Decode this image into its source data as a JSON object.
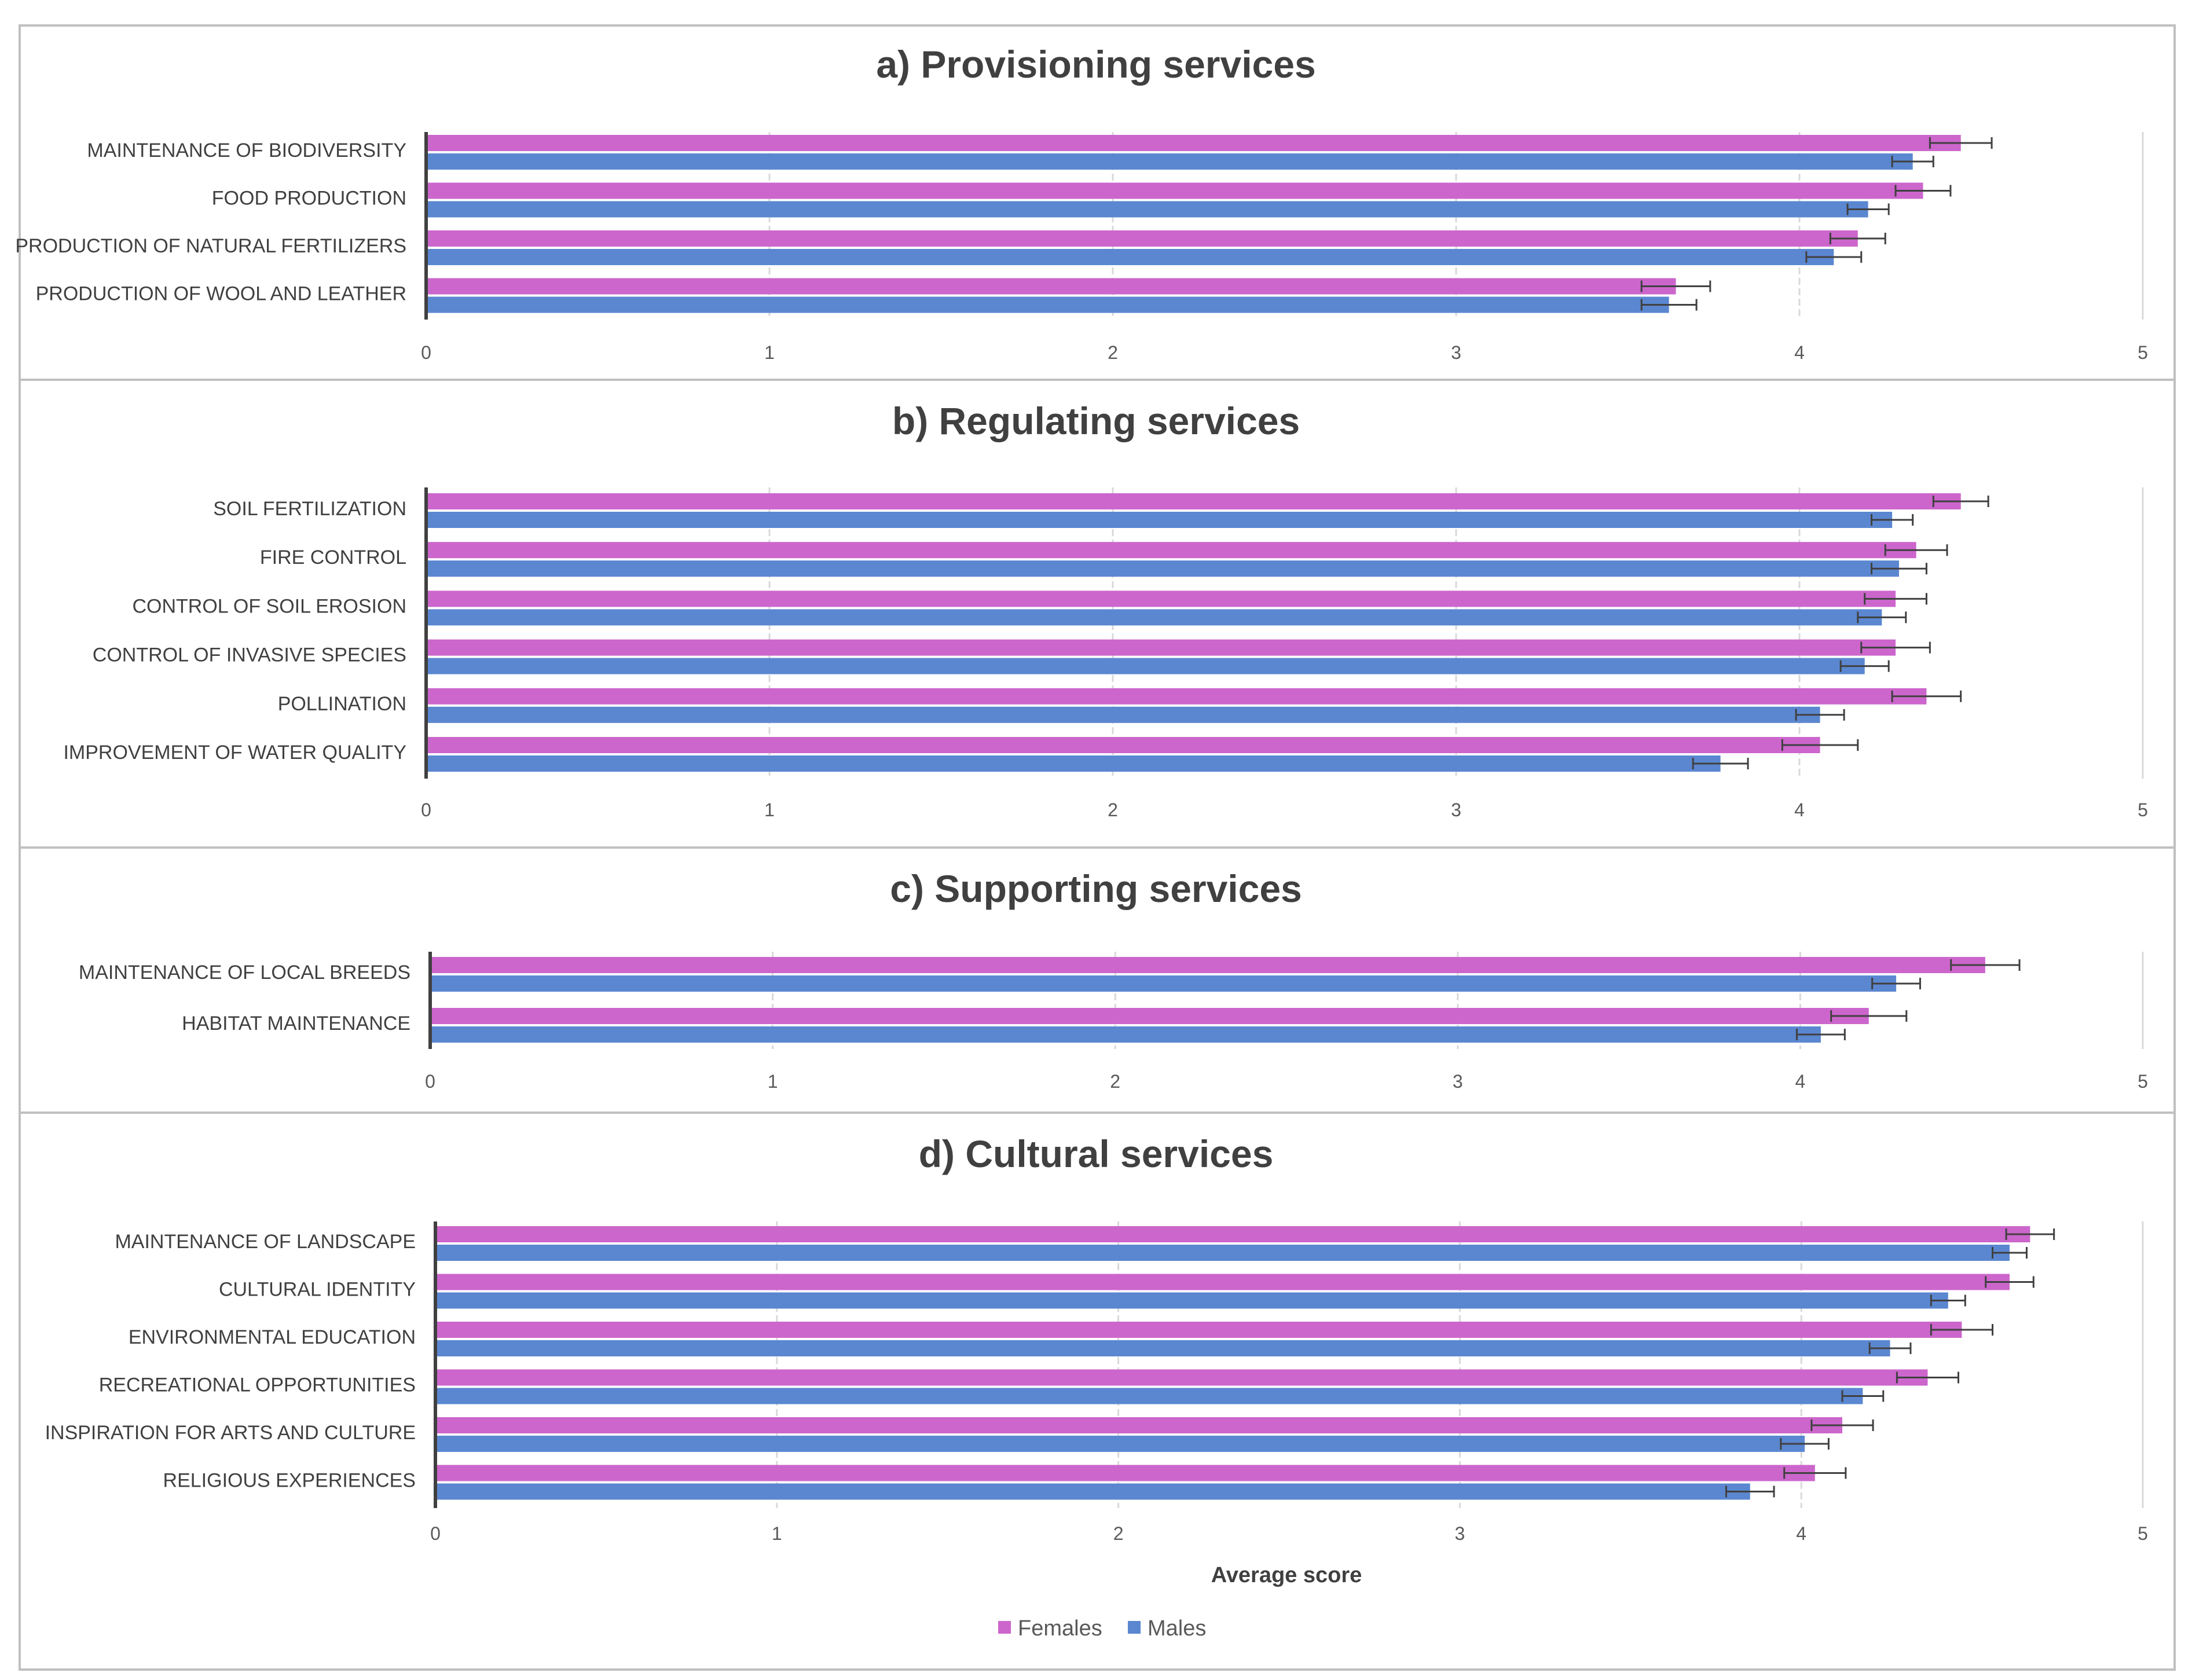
{
  "colors": {
    "females": "#CC66CC",
    "males": "#5B87D1",
    "border": "#C0C0C0",
    "grid": "#D9D9D9",
    "axis": "#404040",
    "errorbar": "#404040"
  },
  "legend": {
    "females": "Females",
    "males": "Males",
    "placement": "bottom-center"
  },
  "xlabel": "Average score",
  "chart_data": [
    {
      "type": "bar",
      "orientation": "horizontal",
      "title": "a) Provisioning services",
      "categories": [
        "MAINTENANCE OF BIODIVERSITY",
        "FOOD PRODUCTION",
        "PRODUCTION OF NATURAL FERTILIZERS",
        "PRODUCTION OF WOOL AND LEATHER"
      ],
      "series": [
        {
          "name": "Females",
          "values": [
            4.47,
            4.36,
            4.17,
            3.64
          ],
          "errors": [
            0.09,
            0.08,
            0.08,
            0.1
          ]
        },
        {
          "name": "Males",
          "values": [
            4.33,
            4.2,
            4.1,
            3.62
          ],
          "errors": [
            0.06,
            0.06,
            0.08,
            0.08
          ]
        }
      ],
      "xlim": [
        0,
        5
      ],
      "ticks": [
        "0",
        "1",
        "2",
        "3",
        "4",
        "5"
      ],
      "grid": true
    },
    {
      "type": "bar",
      "orientation": "horizontal",
      "title": "b) Regulating services",
      "categories": [
        "SOIL FERTILIZATION",
        "FIRE CONTROL",
        "CONTROL OF SOIL EROSION",
        "CONTROL OF INVASIVE SPECIES",
        "POLLINATION",
        "IMPROVEMENT OF WATER QUALITY"
      ],
      "series": [
        {
          "name": "Females",
          "values": [
            4.47,
            4.34,
            4.28,
            4.28,
            4.37,
            4.06
          ],
          "errors": [
            0.08,
            0.09,
            0.09,
            0.1,
            0.1,
            0.11
          ]
        },
        {
          "name": "Males",
          "values": [
            4.27,
            4.29,
            4.24,
            4.19,
            4.06,
            3.77
          ],
          "errors": [
            0.06,
            0.08,
            0.07,
            0.07,
            0.07,
            0.08
          ]
        }
      ],
      "xlim": [
        0,
        5
      ],
      "ticks": [
        "0",
        "1",
        "2",
        "3",
        "4",
        "5"
      ],
      "grid": true
    },
    {
      "type": "bar",
      "orientation": "horizontal",
      "title": "c) Supporting services",
      "categories": [
        "MAINTENANCE OF LOCAL BREEDS",
        "HABITAT MAINTENANCE"
      ],
      "series": [
        {
          "name": "Females",
          "values": [
            4.54,
            4.2
          ],
          "errors": [
            0.1,
            0.11
          ]
        },
        {
          "name": "Males",
          "values": [
            4.28,
            4.06
          ],
          "errors": [
            0.07,
            0.07
          ]
        }
      ],
      "xlim": [
        0,
        5
      ],
      "ticks": [
        "0",
        "1",
        "2",
        "3",
        "4",
        "5"
      ],
      "grid": true
    },
    {
      "type": "bar",
      "orientation": "horizontal",
      "title": "d) Cultural services",
      "categories": [
        "MAINTENANCE OF LANDSCAPE",
        "CULTURAL IDENTITY",
        "ENVIRONMENTAL EDUCATION",
        "RECREATIONAL OPPORTUNITIES",
        "INSPIRATION FOR ARTS AND CULTURE",
        "RELIGIOUS EXPERIENCES"
      ],
      "series": [
        {
          "name": "Females",
          "values": [
            4.67,
            4.61,
            4.47,
            4.37,
            4.12,
            4.04
          ],
          "errors": [
            0.07,
            0.07,
            0.09,
            0.09,
            0.09,
            0.09
          ]
        },
        {
          "name": "Males",
          "values": [
            4.61,
            4.43,
            4.26,
            4.18,
            4.01,
            3.85
          ],
          "errors": [
            0.05,
            0.05,
            0.06,
            0.06,
            0.07,
            0.07
          ]
        }
      ],
      "xlim": [
        0,
        5
      ],
      "ticks": [
        "0",
        "1",
        "2",
        "3",
        "4",
        "5"
      ],
      "grid": true,
      "xlabel": "Average score"
    }
  ]
}
